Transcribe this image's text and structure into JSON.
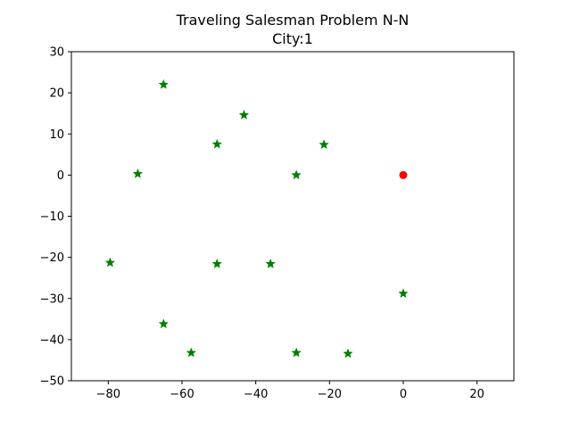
{
  "chart_data": {
    "type": "scatter",
    "title_lines": [
      "Traveling Salesman Problem N-N",
      "City:1"
    ],
    "xlabel": "",
    "ylabel": "",
    "xlim": [
      -90,
      30
    ],
    "ylim": [
      -50,
      30
    ],
    "xticks": [
      -80,
      -60,
      -40,
      -20,
      0,
      20
    ],
    "yticks": [
      -50,
      -40,
      -30,
      -20,
      -10,
      0,
      10,
      20,
      30
    ],
    "grid": false,
    "series": [
      {
        "marker": "star",
        "color": "#008000",
        "points": [
          [
            -65,
            22
          ],
          [
            -43.2,
            14.6
          ],
          [
            -50.5,
            7.5
          ],
          [
            -21.5,
            7.4
          ],
          [
            -72,
            0.3
          ],
          [
            -29,
            0
          ],
          [
            -79.5,
            -21.3
          ],
          [
            -50.5,
            -21.6
          ],
          [
            -36,
            -21.6
          ],
          [
            0,
            -28.8
          ],
          [
            -65,
            -36.2
          ],
          [
            -57.5,
            -43.2
          ],
          [
            -29,
            -43.2
          ],
          [
            -15,
            -43.4
          ]
        ]
      },
      {
        "marker": "circle",
        "color": "#ff0000",
        "points": [
          [
            0,
            0
          ]
        ]
      }
    ]
  }
}
